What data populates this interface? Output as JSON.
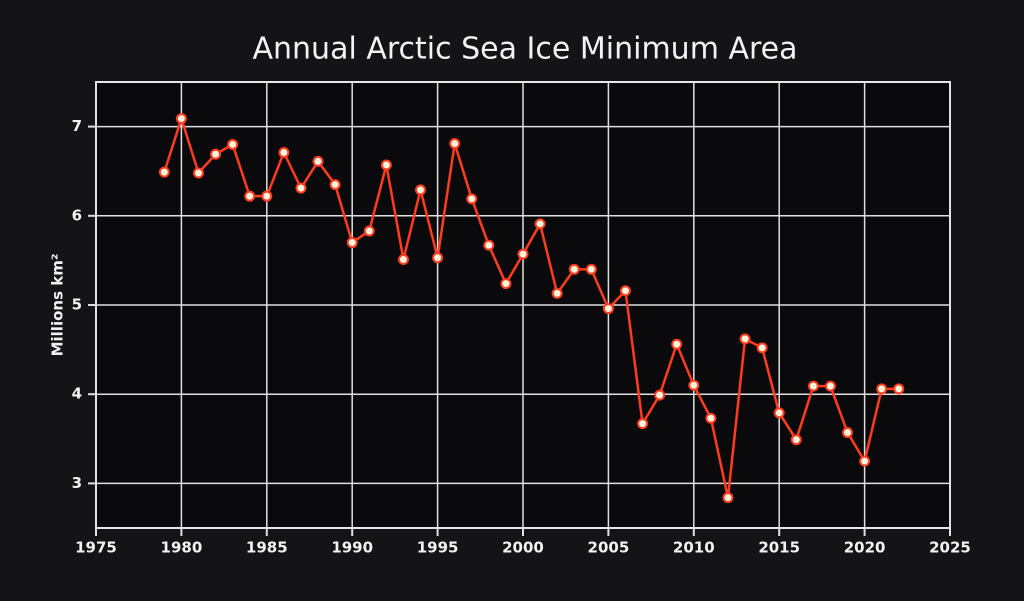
{
  "chart_data": {
    "type": "line",
    "title": "Annual Arctic Sea Ice Minimum Area",
    "y_label": "Millions km²",
    "x": [
      1979,
      1980,
      1981,
      1982,
      1983,
      1984,
      1985,
      1986,
      1987,
      1988,
      1989,
      1990,
      1991,
      1992,
      1993,
      1994,
      1995,
      1996,
      1997,
      1998,
      1999,
      2000,
      2001,
      2002,
      2003,
      2004,
      2005,
      2006,
      2007,
      2008,
      2009,
      2010,
      2011,
      2012,
      2013,
      2014,
      2015,
      2016,
      2017,
      2018,
      2019,
      2020,
      2021,
      2022
    ],
    "series": [
      {
        "color": "#ff3b1f",
        "values": [
          6.49,
          7.09,
          6.48,
          6.69,
          6.8,
          6.22,
          6.22,
          6.71,
          6.31,
          6.61,
          6.35,
          5.7,
          5.83,
          6.57,
          5.51,
          6.29,
          5.53,
          6.81,
          6.19,
          5.67,
          5.24,
          5.57,
          5.91,
          5.13,
          5.4,
          5.4,
          4.96,
          5.16,
          3.67,
          3.99,
          4.56,
          4.1,
          3.73,
          2.84,
          4.62,
          4.52,
          3.79,
          3.49,
          4.09,
          4.09,
          3.57,
          3.25,
          4.06,
          4.06
        ]
      }
    ],
    "xlim": [
      1975,
      2025
    ],
    "xticks": [
      1975,
      1980,
      1985,
      1990,
      1995,
      2000,
      2005,
      2010,
      2015,
      2020,
      2025
    ],
    "ylim": [
      2.5,
      7.5
    ],
    "yticks": [
      3,
      4,
      5,
      6,
      7
    ],
    "grid": true
  }
}
